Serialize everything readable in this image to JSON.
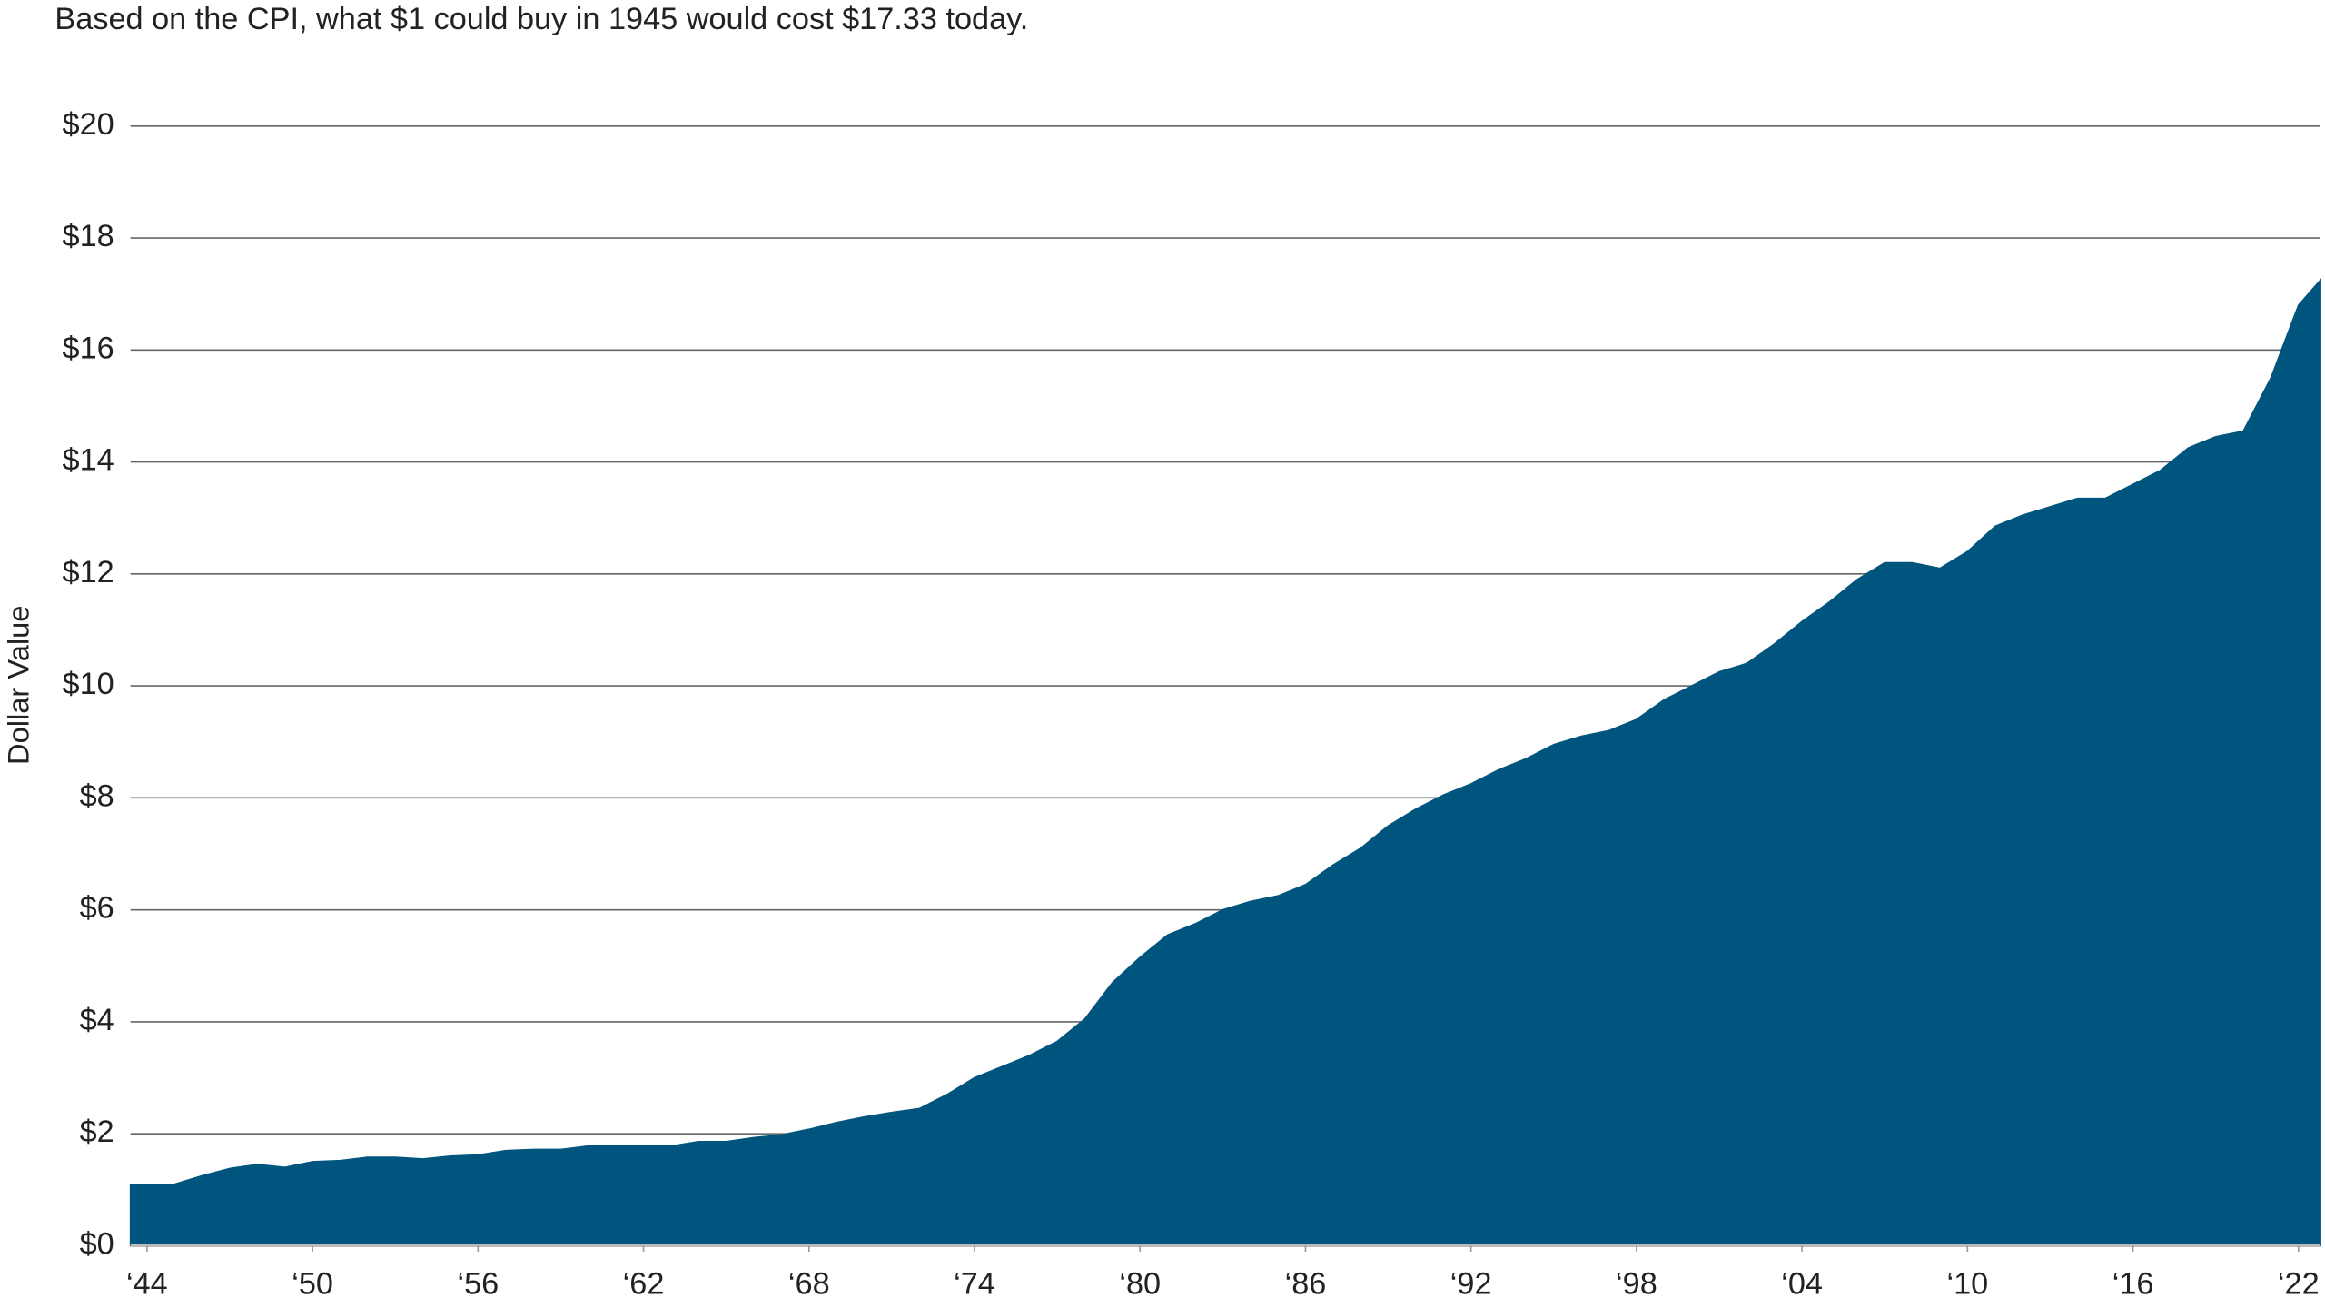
{
  "chart_data": {
    "type": "area",
    "subtitle": "Based on the CPI, what $1 could buy in 1945 would cost $17.33 today.",
    "y_label": "Dollar Value",
    "x": [
      1943.4,
      1944,
      1945,
      1946,
      1947,
      1948,
      1949,
      1950,
      1951,
      1952,
      1953,
      1954,
      1955,
      1956,
      1957,
      1958,
      1959,
      1960,
      1961,
      1962,
      1963,
      1964,
      1965,
      1966,
      1967,
      1968,
      1969,
      1970,
      1971,
      1972,
      1973,
      1974,
      1975,
      1976,
      1977,
      1978,
      1979,
      1980,
      1981,
      1982,
      1983,
      1984,
      1985,
      1986,
      1987,
      1988,
      1989,
      1990,
      1991,
      1992,
      1993,
      1994,
      1995,
      1996,
      1997,
      1998,
      1999,
      2000,
      2001,
      2002,
      2003,
      2004,
      2005,
      2006,
      2007,
      2008,
      2009,
      2010,
      2011,
      2012,
      2013,
      2014,
      2015,
      2016,
      2017,
      2018,
      2019,
      2020,
      2021,
      2022,
      2022.8
    ],
    "values": [
      1.08,
      1.08,
      1.1,
      1.25,
      1.38,
      1.45,
      1.4,
      1.5,
      1.52,
      1.58,
      1.58,
      1.55,
      1.6,
      1.62,
      1.7,
      1.72,
      1.72,
      1.78,
      1.78,
      1.78,
      1.78,
      1.86,
      1.86,
      1.93,
      1.98,
      2.08,
      2.2,
      2.3,
      2.38,
      2.45,
      2.7,
      3.0,
      3.2,
      3.4,
      3.65,
      4.05,
      4.7,
      5.15,
      5.55,
      5.75,
      6.0,
      6.15,
      6.25,
      6.45,
      6.8,
      7.1,
      7.5,
      7.8,
      8.05,
      8.25,
      8.5,
      8.7,
      8.95,
      9.1,
      9.2,
      9.4,
      9.75,
      10.0,
      10.25,
      10.4,
      10.75,
      11.15,
      11.5,
      11.9,
      12.2,
      12.2,
      12.1,
      12.4,
      12.85,
      13.05,
      13.2,
      13.35,
      13.35,
      13.6,
      13.85,
      14.25,
      14.45,
      14.55,
      15.5,
      16.8,
      17.25
    ],
    "color": "#00557e",
    "xlim": [
      1943.4,
      2022.8
    ],
    "ylim": [
      0,
      20
    ],
    "xticks": [
      {
        "value": 1944,
        "label": "‘44"
      },
      {
        "value": 1950,
        "label": "‘50"
      },
      {
        "value": 1956,
        "label": "‘56"
      },
      {
        "value": 1962,
        "label": "‘62"
      },
      {
        "value": 1968,
        "label": "‘68"
      },
      {
        "value": 1974,
        "label": "‘74"
      },
      {
        "value": 1980,
        "label": "‘80"
      },
      {
        "value": 1986,
        "label": "‘86"
      },
      {
        "value": 1992,
        "label": "‘92"
      },
      {
        "value": 1998,
        "label": "‘98"
      },
      {
        "value": 2004,
        "label": "‘04"
      },
      {
        "value": 2010,
        "label": "‘10"
      },
      {
        "value": 2016,
        "label": "‘16"
      },
      {
        "value": 2022,
        "label": "‘22"
      }
    ],
    "yticks": [
      {
        "value": 0,
        "label": "$0"
      },
      {
        "value": 2,
        "label": "$2"
      },
      {
        "value": 4,
        "label": "$4"
      },
      {
        "value": 6,
        "label": "$6"
      },
      {
        "value": 8,
        "label": "$8"
      },
      {
        "value": 10,
        "label": "$10"
      },
      {
        "value": 12,
        "label": "$12"
      },
      {
        "value": 14,
        "label": "$14"
      },
      {
        "value": 16,
        "label": "$16"
      },
      {
        "value": 18,
        "label": "$18"
      },
      {
        "value": 20,
        "label": "$20"
      }
    ],
    "grid": true
  }
}
